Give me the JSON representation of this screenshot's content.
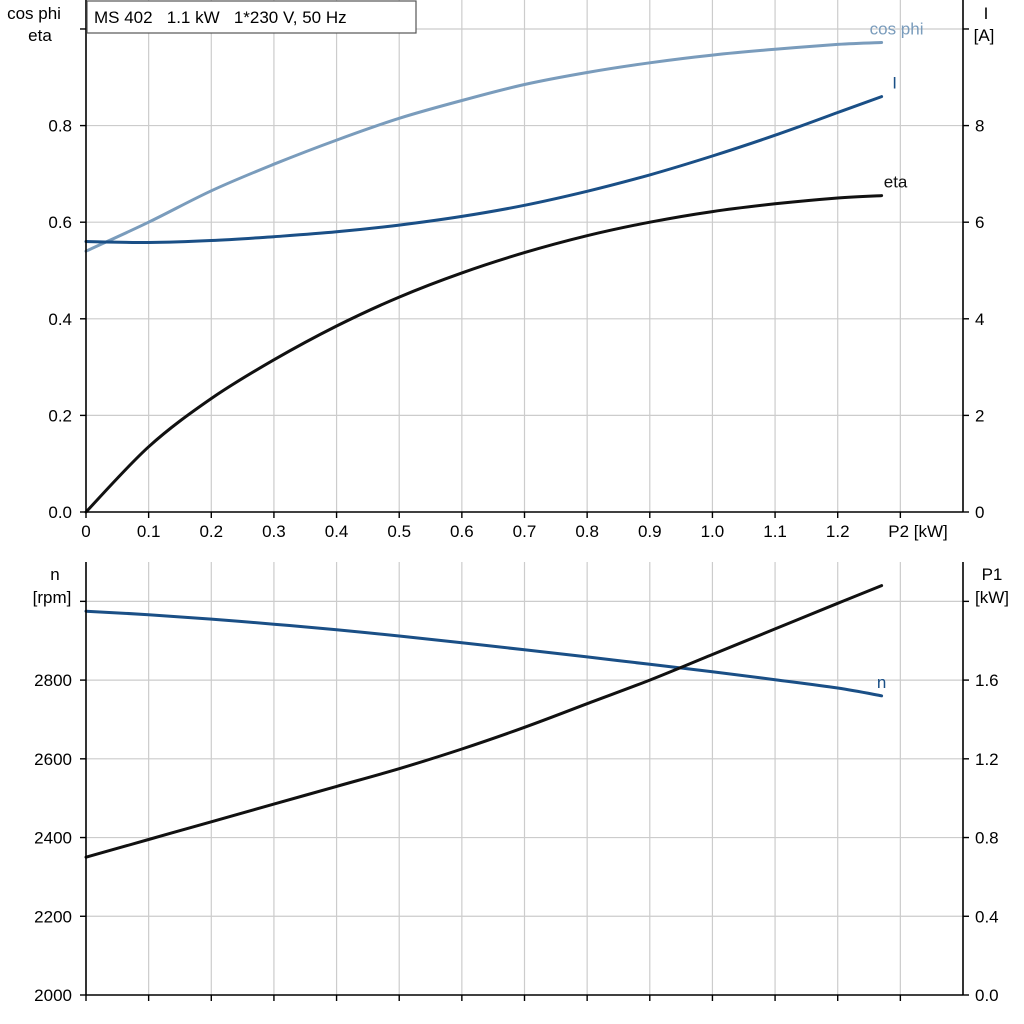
{
  "legend_box": "MS 402   1.1 kW   1*230 V, 50 Hz",
  "colors": {
    "cos_phi": "#7a9cbc",
    "current": "#1a4f86",
    "eta": "#111111",
    "speed": "#1a4f86",
    "p1": "#111111",
    "grid": "#cccccc"
  },
  "chart_data": [
    {
      "type": "line",
      "xlabel": "P2 [kW]",
      "xlim": [
        0,
        1.4
      ],
      "xticks": [
        "0",
        "0.1",
        "0.2",
        "0.3",
        "0.4",
        "0.5",
        "0.6",
        "0.7",
        "0.8",
        "0.9",
        "1.0",
        "1.1",
        "1.2"
      ],
      "ylabel_left": [
        "cos phi",
        "eta"
      ],
      "ylim_left": [
        0,
        1.06
      ],
      "yticks_left": [
        "0.0",
        "0.2",
        "0.4",
        "0.6",
        "0.8"
      ],
      "ylabel_right": [
        "I",
        "[A]"
      ],
      "ylim_right": [
        0,
        10.6
      ],
      "yticks_right": [
        "0",
        "2",
        "4",
        "6",
        "8"
      ],
      "grid": true,
      "series": [
        {
          "name": "cos phi",
          "axis": "left",
          "x": [
            0,
            0.1,
            0.2,
            0.3,
            0.4,
            0.5,
            0.6,
            0.7,
            0.8,
            0.9,
            1.0,
            1.1,
            1.2,
            1.27
          ],
          "values": [
            0.54,
            0.6,
            0.665,
            0.72,
            0.77,
            0.815,
            0.852,
            0.885,
            0.91,
            0.93,
            0.946,
            0.958,
            0.968,
            0.972
          ]
        },
        {
          "name": "I",
          "axis": "right",
          "x": [
            0,
            0.1,
            0.2,
            0.3,
            0.4,
            0.5,
            0.6,
            0.7,
            0.8,
            0.9,
            1.0,
            1.1,
            1.2,
            1.27
          ],
          "values": [
            5.6,
            5.58,
            5.62,
            5.7,
            5.8,
            5.94,
            6.12,
            6.35,
            6.64,
            6.98,
            7.37,
            7.8,
            8.27,
            8.6
          ]
        },
        {
          "name": "eta",
          "axis": "left",
          "x": [
            0,
            0.1,
            0.2,
            0.3,
            0.4,
            0.5,
            0.6,
            0.7,
            0.8,
            0.9,
            1.0,
            1.1,
            1.2,
            1.27
          ],
          "values": [
            0.0,
            0.135,
            0.235,
            0.315,
            0.385,
            0.445,
            0.495,
            0.537,
            0.572,
            0.6,
            0.622,
            0.638,
            0.65,
            0.655
          ]
        }
      ]
    },
    {
      "type": "line",
      "xlim": [
        0,
        1.4
      ],
      "ylabel_left": [
        "n",
        "[rpm]"
      ],
      "ylim_left": [
        2000,
        3100
      ],
      "yticks_left": [
        "2000",
        "2200",
        "2400",
        "2600",
        "2800"
      ],
      "ylabel_right": [
        "P1",
        "[kW]"
      ],
      "ylim_right": [
        0,
        2.2
      ],
      "yticks_right": [
        "0.0",
        "0.4",
        "0.8",
        "1.2",
        "1.6"
      ],
      "grid": true,
      "series": [
        {
          "name": "n",
          "axis": "left",
          "x": [
            0,
            0.1,
            0.2,
            0.3,
            0.4,
            0.5,
            0.6,
            0.7,
            0.8,
            0.9,
            1.0,
            1.1,
            1.2,
            1.27
          ],
          "values": [
            2975,
            2966,
            2955,
            2942,
            2928,
            2912,
            2895,
            2877,
            2859,
            2840,
            2821,
            2801,
            2780,
            2760
          ]
        },
        {
          "name": "",
          "axis": "right",
          "x": [
            0,
            0.1,
            0.2,
            0.3,
            0.4,
            0.5,
            0.6,
            0.7,
            0.8,
            0.9,
            1.0,
            1.1,
            1.2,
            1.27
          ],
          "values": [
            0.7,
            0.79,
            0.88,
            0.97,
            1.06,
            1.15,
            1.25,
            1.36,
            1.48,
            1.6,
            1.73,
            1.86,
            1.99,
            2.08
          ]
        }
      ]
    }
  ]
}
